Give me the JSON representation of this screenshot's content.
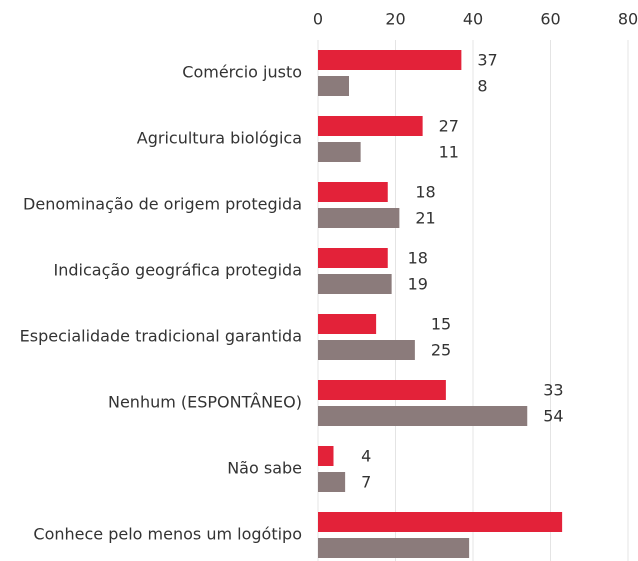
{
  "chart_data": {
    "type": "bar",
    "orientation": "horizontal",
    "categories": [
      "Comércio justo",
      "Agricultura biológica",
      "Denominação de origem protegida",
      "Indicação geográfica protegida",
      "Especialidade tradicional garantida",
      "Nenhum (ESPONTÂNEO)",
      "Não sabe",
      "Conhece pelo menos um logótipo"
    ],
    "series": [
      {
        "color": "#e32239",
        "values": [
          37,
          27,
          18,
          18,
          15,
          33,
          4,
          63
        ],
        "value_labels": [
          "37",
          "27",
          "18",
          "18",
          "15",
          "33",
          "4",
          null
        ]
      },
      {
        "color": "#8b7b7b",
        "values": [
          8,
          11,
          21,
          19,
          25,
          54,
          7,
          39
        ],
        "value_labels": [
          "8",
          "11",
          "21",
          "19",
          "25",
          "54",
          "7",
          null
        ]
      }
    ],
    "xlim": [
      0,
      80
    ],
    "xticks": [
      0,
      20,
      40,
      60,
      80
    ],
    "grid": true
  }
}
